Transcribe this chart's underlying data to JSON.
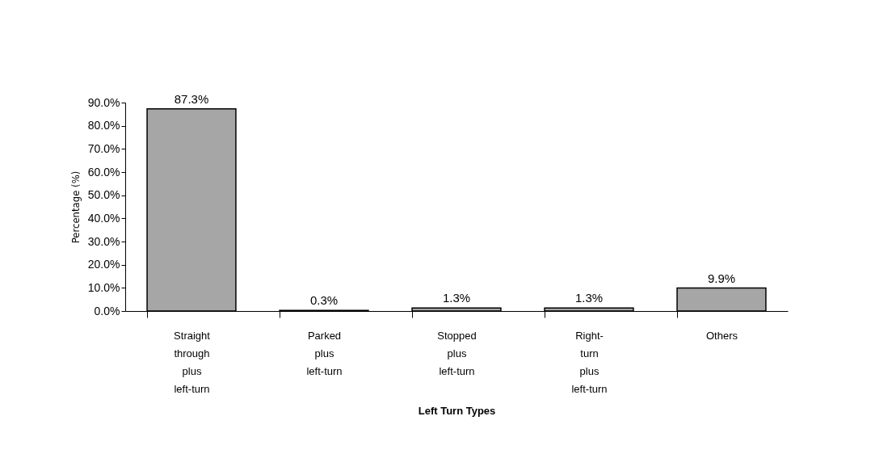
{
  "chart_data": {
    "type": "bar",
    "xlabel": "Left Turn Types",
    "ylabel": "Percentage (%)",
    "categories": [
      "Straight\nthrough\nplus\nleft-turn",
      "Parked\nplus\nleft-turn",
      "Stopped\nplus\nleft-turn",
      "Right-\nturn\nplus\nleft-turn",
      "Others"
    ],
    "values": [
      87.3,
      0.3,
      1.3,
      1.3,
      9.9
    ],
    "value_labels": [
      "87.3%",
      "0.3%",
      "1.3%",
      "1.3%",
      "9.9%"
    ],
    "color": "#a6a6a6",
    "ylim": [
      0,
      90
    ],
    "yticks": [
      {
        "value": 0,
        "label": "0.0%"
      },
      {
        "value": 10,
        "label": "10.0%"
      },
      {
        "value": 20,
        "label": "20.0%"
      },
      {
        "value": 30,
        "label": "30.0%"
      },
      {
        "value": 40,
        "label": "40.0%"
      },
      {
        "value": 50,
        "label": "50.0%"
      },
      {
        "value": 60,
        "label": "60.0%"
      },
      {
        "value": 70,
        "label": "70.0%"
      },
      {
        "value": 80,
        "label": "80.0%"
      },
      {
        "value": 90,
        "label": "90.0%"
      }
    ],
    "grid": false
  }
}
